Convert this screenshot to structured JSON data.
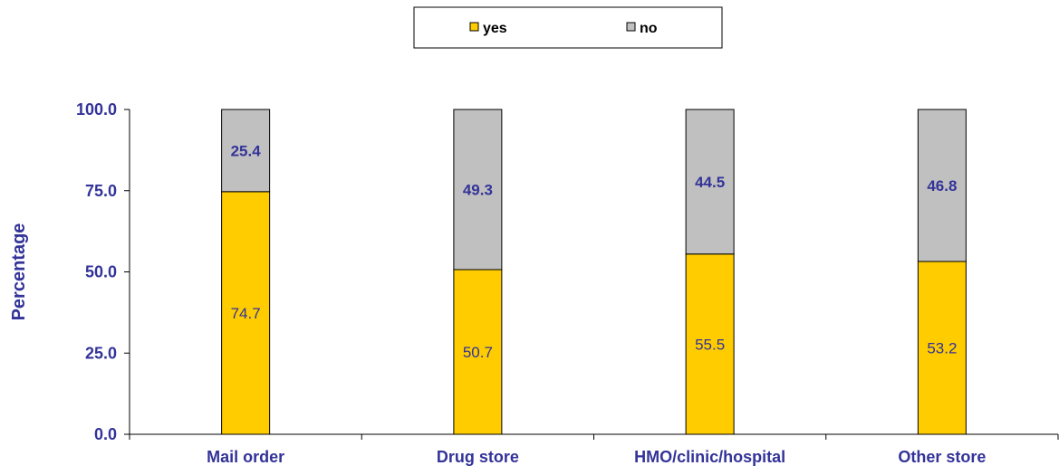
{
  "chart_data": {
    "type": "bar",
    "stacked": true,
    "categories": [
      "Mail order",
      "Drug store",
      "HMO/clinic/hospital",
      "Other store"
    ],
    "series": [
      {
        "name": "yes",
        "values": [
          74.7,
          50.7,
          55.5,
          53.2
        ],
        "labels": [
          "74.7",
          "50.7",
          "55.5",
          "53.2"
        ]
      },
      {
        "name": "no",
        "values": [
          25.4,
          49.3,
          44.5,
          46.8
        ],
        "labels": [
          "25.4",
          "49.3",
          "44.5",
          "46.8"
        ]
      }
    ],
    "title": "",
    "xlabel": "",
    "ylabel": "Percentage",
    "ylim": [
      0,
      100
    ],
    "yticks": [
      "0.0",
      "25.0",
      "50.0",
      "75.0",
      "100.0"
    ],
    "grid": false,
    "legend_position": "top-center",
    "colors": {
      "yes": "#ffcc00",
      "no": "#c0c0c0",
      "text": "#333399",
      "axis": "#000000"
    }
  }
}
